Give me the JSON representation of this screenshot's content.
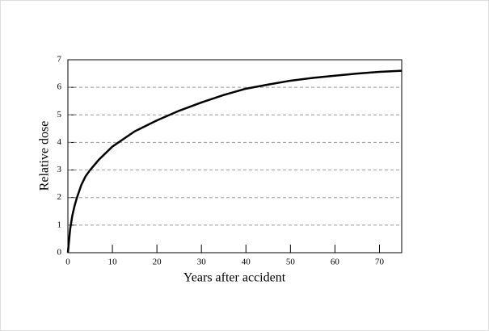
{
  "chart_data": {
    "type": "line",
    "xlabel": "Years after accident",
    "ylabel": "Relative dose",
    "x": [
      0,
      0.5,
      1,
      1.5,
      2,
      3,
      4,
      5,
      7,
      10,
      15,
      20,
      25,
      30,
      35,
      40,
      45,
      50,
      55,
      60,
      65,
      70,
      75
    ],
    "series": [
      {
        "color": "#000000",
        "values": [
          0,
          0.85,
          1.35,
          1.7,
          1.98,
          2.45,
          2.78,
          3.0,
          3.38,
          3.85,
          4.4,
          4.8,
          5.15,
          5.45,
          5.72,
          5.95,
          6.1,
          6.24,
          6.34,
          6.42,
          6.5,
          6.56,
          6.6
        ]
      }
    ],
    "xlim": [
      0,
      75
    ],
    "xticks": [
      0,
      10,
      20,
      30,
      40,
      50,
      60,
      70
    ],
    "ylim": [
      0,
      7
    ],
    "yticks": [
      0,
      1,
      2,
      3,
      4,
      5,
      6,
      7
    ],
    "grid": true
  }
}
